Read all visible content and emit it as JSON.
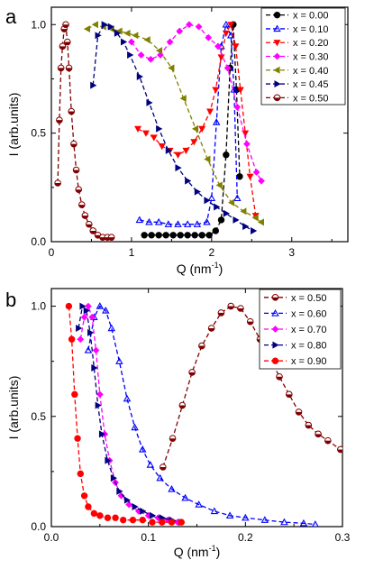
{
  "chart_data": [
    {
      "type": "line",
      "panel_label": "a",
      "xlabel": "Q (nm",
      "xlabel_sup": "-1",
      "xlabel_end": ")",
      "ylabel": "I (arb.units)",
      "xlim": [
        0,
        3.7
      ],
      "ylim": [
        0,
        1.08
      ],
      "xticks": [
        0,
        1,
        2,
        3
      ],
      "yticks": [
        0.0,
        0.5,
        1.0
      ],
      "xtick_labels": [
        "0",
        "1",
        "2",
        "3"
      ],
      "ytick_labels": [
        "0.0",
        "0.5",
        "1.0"
      ],
      "legend_position": "top-right",
      "series": [
        {
          "name": "x = 0.00",
          "color": "#000000",
          "marker": "circle",
          "x": [
            1.16,
            1.25,
            1.34,
            1.43,
            1.52,
            1.61,
            1.7,
            1.79,
            1.88,
            1.97,
            2.05,
            2.12,
            2.18,
            2.23,
            2.27,
            2.31,
            2.35
          ],
          "y": [
            0.03,
            0.03,
            0.03,
            0.03,
            0.03,
            0.03,
            0.03,
            0.03,
            0.03,
            0.03,
            0.05,
            0.1,
            0.4,
            0.8,
            1.0,
            0.7,
            0.3
          ]
        },
        {
          "name": "x = 0.10",
          "color": "#0000ff",
          "marker": "triangle-up",
          "x": [
            1.1,
            1.22,
            1.34,
            1.46,
            1.58,
            1.7,
            1.82,
            1.94,
            2.0,
            2.06,
            2.12,
            2.18,
            2.24,
            2.28,
            2.32
          ],
          "y": [
            0.1,
            0.09,
            0.09,
            0.08,
            0.08,
            0.08,
            0.08,
            0.09,
            0.2,
            0.55,
            0.9,
            1.0,
            0.95,
            0.7,
            0.2
          ]
        },
        {
          "name": "x = 0.20",
          "color": "#ff0000",
          "marker": "triangle-down",
          "x": [
            1.08,
            1.18,
            1.28,
            1.38,
            1.48,
            1.58,
            1.68,
            1.78,
            1.88,
            1.98,
            2.05,
            2.12,
            2.18,
            2.24,
            2.3,
            2.36,
            2.42,
            2.48,
            2.55
          ],
          "y": [
            0.52,
            0.5,
            0.48,
            0.44,
            0.42,
            0.4,
            0.42,
            0.46,
            0.52,
            0.6,
            0.7,
            0.85,
            0.96,
            1.0,
            0.9,
            0.7,
            0.5,
            0.3,
            0.12
          ]
        },
        {
          "name": "x = 0.30",
          "color": "#ff00ff",
          "marker": "diamond",
          "x": [
            1.0,
            1.12,
            1.24,
            1.36,
            1.48,
            1.6,
            1.72,
            1.84,
            1.96,
            2.08,
            2.2,
            2.32,
            2.44,
            2.56,
            2.62
          ],
          "y": [
            0.92,
            0.86,
            0.84,
            0.86,
            0.92,
            0.97,
            1.0,
            0.99,
            0.94,
            0.9,
            0.8,
            0.62,
            0.45,
            0.32,
            0.28
          ]
        },
        {
          "name": "x = 0.40",
          "color": "#808000",
          "marker": "triangle-left",
          "x": [
            0.45,
            0.55,
            0.65,
            0.75,
            0.85,
            0.95,
            1.05,
            1.2,
            1.35,
            1.5,
            1.65,
            1.8,
            1.95,
            2.1,
            2.25,
            2.4,
            2.55,
            2.62
          ],
          "y": [
            0.98,
            1.0,
            0.99,
            0.98,
            0.97,
            0.96,
            0.95,
            0.93,
            0.88,
            0.8,
            0.66,
            0.52,
            0.38,
            0.26,
            0.18,
            0.14,
            0.11,
            0.09
          ]
        },
        {
          "name": "x = 0.45",
          "color": "#000080",
          "marker": "triangle-right",
          "x": [
            0.52,
            0.58,
            0.66,
            0.74,
            0.82,
            0.9,
            0.98,
            1.1,
            1.22,
            1.34,
            1.46,
            1.58,
            1.7,
            1.82,
            1.94,
            2.06,
            2.18,
            2.3,
            2.42,
            2.52
          ],
          "y": [
            0.72,
            0.95,
            1.0,
            0.99,
            0.96,
            0.92,
            0.86,
            0.76,
            0.64,
            0.52,
            0.42,
            0.34,
            0.28,
            0.23,
            0.19,
            0.16,
            0.13,
            0.1,
            0.07,
            0.05
          ]
        },
        {
          "name": "x = 0.50",
          "color": "#800000",
          "marker": "circle-half",
          "x": [
            0.08,
            0.1,
            0.12,
            0.14,
            0.16,
            0.18,
            0.2,
            0.22,
            0.25,
            0.28,
            0.31,
            0.34,
            0.38,
            0.42,
            0.47,
            0.52,
            0.58,
            0.64,
            0.7,
            0.75
          ],
          "y": [
            0.27,
            0.56,
            0.8,
            0.9,
            0.98,
            1.0,
            0.92,
            0.8,
            0.6,
            0.45,
            0.33,
            0.24,
            0.17,
            0.12,
            0.08,
            0.05,
            0.03,
            0.02,
            0.02,
            0.02
          ]
        }
      ]
    },
    {
      "type": "line",
      "panel_label": "b",
      "xlabel": "Q (nm",
      "xlabel_sup": "-1",
      "xlabel_end": ")",
      "ylabel": "I (arb.units)",
      "xlim": [
        0,
        0.3
      ],
      "ylim": [
        0,
        1.08
      ],
      "xticks": [
        0,
        0.1,
        0.2,
        0.3
      ],
      "yticks": [
        0.0,
        0.5,
        1.0
      ],
      "xtick_labels": [
        "0.0",
        "0.1",
        "0.2",
        "0.3"
      ],
      "ytick_labels": [
        "0.0",
        "0.5",
        "1.0"
      ],
      "legend_position": "top-right",
      "series": [
        {
          "name": "x = 0.50",
          "color": "#800000",
          "marker": "circle-half",
          "x": [
            0.115,
            0.125,
            0.135,
            0.145,
            0.155,
            0.165,
            0.175,
            0.185,
            0.195,
            0.205,
            0.215,
            0.225,
            0.235,
            0.245,
            0.255,
            0.265,
            0.275,
            0.285,
            0.298
          ],
          "y": [
            0.27,
            0.4,
            0.55,
            0.7,
            0.82,
            0.9,
            0.97,
            1.0,
            0.99,
            0.93,
            0.85,
            0.77,
            0.68,
            0.6,
            0.52,
            0.46,
            0.42,
            0.39,
            0.35
          ]
        },
        {
          "name": "x = 0.60",
          "color": "#0000ff",
          "marker": "triangle-up",
          "x": [
            0.038,
            0.044,
            0.05,
            0.056,
            0.062,
            0.07,
            0.078,
            0.086,
            0.094,
            0.102,
            0.112,
            0.124,
            0.138,
            0.152,
            0.168,
            0.184,
            0.2,
            0.22,
            0.24,
            0.26,
            0.272
          ],
          "y": [
            0.8,
            0.95,
            1.0,
            0.98,
            0.9,
            0.75,
            0.58,
            0.45,
            0.35,
            0.28,
            0.22,
            0.17,
            0.13,
            0.1,
            0.07,
            0.05,
            0.04,
            0.03,
            0.02,
            0.015,
            0.01
          ]
        },
        {
          "name": "x = 0.70",
          "color": "#ff00ff",
          "marker": "diamond",
          "x": [
            0.03,
            0.034,
            0.038,
            0.042,
            0.046,
            0.05,
            0.055,
            0.06,
            0.066,
            0.072,
            0.08,
            0.09,
            0.1,
            0.11,
            0.12,
            0.13
          ],
          "y": [
            0.85,
            0.95,
            1.0,
            0.95,
            0.8,
            0.6,
            0.42,
            0.3,
            0.2,
            0.14,
            0.1,
            0.07,
            0.05,
            0.04,
            0.03,
            0.02
          ]
        },
        {
          "name": "x = 0.80",
          "color": "#000080",
          "marker": "triangle-right",
          "x": [
            0.028,
            0.032,
            0.036,
            0.04,
            0.044,
            0.048,
            0.052,
            0.058,
            0.064,
            0.07,
            0.078,
            0.086,
            0.094,
            0.104,
            0.114,
            0.124,
            0.134
          ],
          "y": [
            0.9,
            1.0,
            0.98,
            0.88,
            0.72,
            0.55,
            0.42,
            0.3,
            0.22,
            0.16,
            0.12,
            0.09,
            0.07,
            0.05,
            0.04,
            0.03,
            0.02
          ]
        },
        {
          "name": "x = 0.90",
          "color": "#ff0000",
          "marker": "circle",
          "x": [
            0.018,
            0.021,
            0.024,
            0.027,
            0.03,
            0.034,
            0.038,
            0.044,
            0.05,
            0.058,
            0.066,
            0.074,
            0.084,
            0.094,
            0.104,
            0.114,
            0.124,
            0.134
          ],
          "y": [
            1.0,
            0.85,
            0.6,
            0.4,
            0.24,
            0.14,
            0.09,
            0.06,
            0.05,
            0.04,
            0.04,
            0.03,
            0.03,
            0.03,
            0.02,
            0.02,
            0.02,
            0.02
          ]
        }
      ]
    }
  ]
}
